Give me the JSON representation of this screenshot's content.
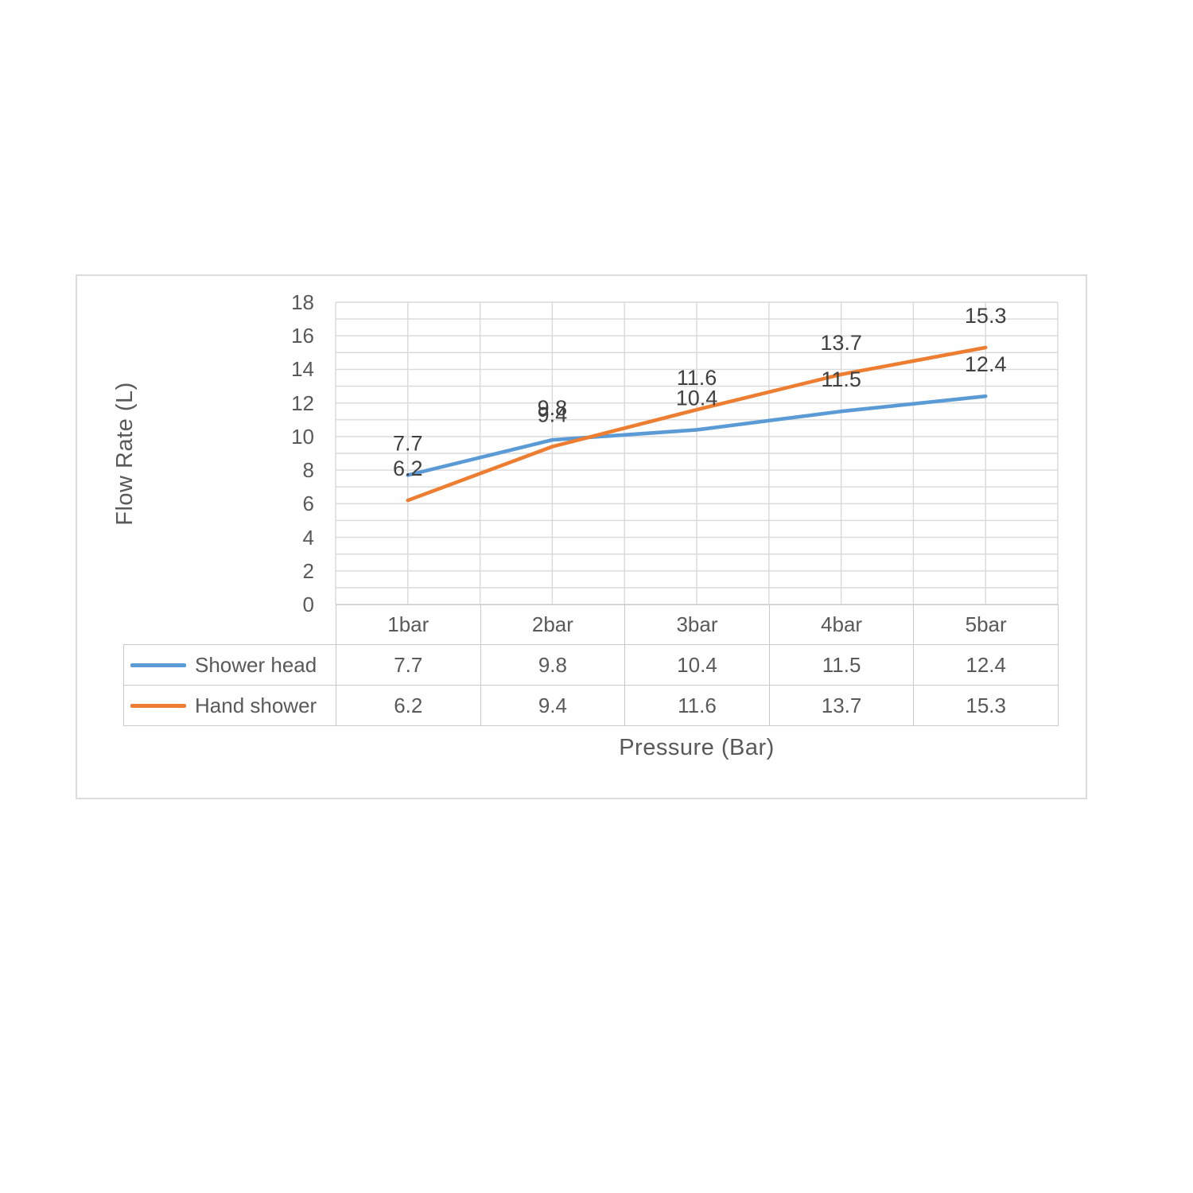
{
  "chart": {
    "y_axis_title": "Flow Rate (L)",
    "x_axis_title": "Pressure (Bar)"
  },
  "colors": {
    "series_blue": "#5B9BD5",
    "series_orange": "#ED7D31",
    "gridline": "#D9D9D9",
    "table_border": "#C9C9C9",
    "axis_text": "#595959",
    "data_label_text": "#404040",
    "panel_border": "#DCDCDC"
  },
  "chart_data": {
    "type": "line",
    "title": "",
    "categories": [
      "1bar",
      "2bar",
      "3bar",
      "4bar",
      "5bar"
    ],
    "series": [
      {
        "name": "Shower head",
        "color": "#5B9BD5",
        "values": [
          7.7,
          9.8,
          10.4,
          11.5,
          12.4
        ]
      },
      {
        "name": "Hand shower",
        "color": "#ED7D31",
        "values": [
          6.2,
          9.4,
          11.6,
          13.7,
          15.3
        ]
      }
    ],
    "xlabel": "Pressure (Bar)",
    "ylabel": "Flow Rate (L)",
    "ylim": [
      0,
      18
    ],
    "y_tick_step": 2,
    "y_minor_gridline_step": 1,
    "x_minor_gridlines": true,
    "grid": true,
    "data_labels": true,
    "legend_position": "data-table-left",
    "data_table": true
  }
}
